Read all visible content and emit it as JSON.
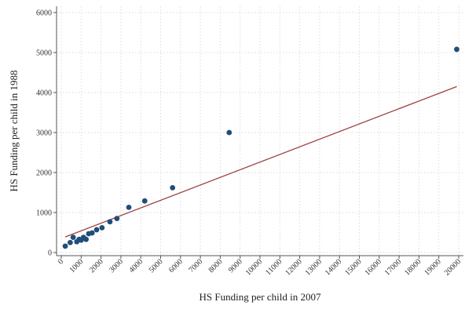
{
  "chart_data": {
    "type": "scatter",
    "xlabel": "HS Funding per child in 2007",
    "ylabel": "HS Funding per child in 1988",
    "xlim": [
      0,
      20000
    ],
    "ylim": [
      0,
      6000
    ],
    "grid": true,
    "x_ticks": [
      0,
      1000,
      2000,
      3000,
      4000,
      5000,
      6000,
      7000,
      8000,
      9000,
      10000,
      11000,
      12000,
      13000,
      14000,
      15000,
      16000,
      17000,
      18000,
      19000,
      20000
    ],
    "x_tick_labels": [
      "0",
      "1000",
      "2000",
      "3000",
      "4000",
      "5000",
      "6000",
      "7000",
      "8000",
      "9000",
      "10000",
      "11000",
      "12000",
      "13000",
      "14000",
      "15000",
      "16000",
      "17000",
      "18000",
      "19000",
      "20000"
    ],
    "y_ticks": [
      0,
      1000,
      2000,
      3000,
      4000,
      5000,
      6000
    ],
    "y_tick_labels": [
      "0",
      "1000",
      "2000",
      "3000",
      "4000",
      "5000",
      "6000"
    ],
    "points": {
      "color": "#1f4e79",
      "x": [
        200,
        450,
        600,
        780,
        900,
        1000,
        1120,
        1250,
        1380,
        1550,
        1780,
        2050,
        2450,
        2800,
        3400,
        4200,
        5600,
        8450,
        19900
      ],
      "y": [
        160,
        250,
        380,
        270,
        330,
        310,
        380,
        330,
        470,
        490,
        570,
        620,
        770,
        850,
        1130,
        1290,
        1620,
        3000,
        5080
      ]
    },
    "fit_line": {
      "color": "#a04040",
      "x": [
        200,
        19900
      ],
      "y": [
        390,
        4150
      ]
    }
  }
}
